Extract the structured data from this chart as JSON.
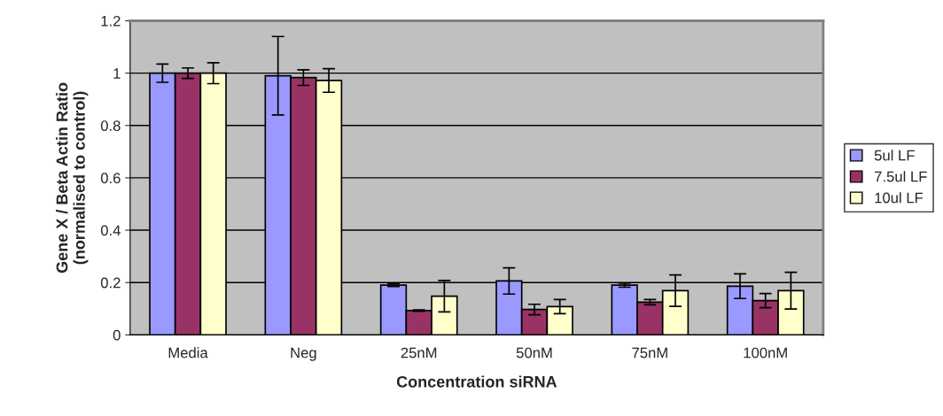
{
  "chart_data": {
    "type": "bar",
    "xlabel": "Concentration siRNA",
    "ylabel": "Gene X / Beta Actin Ratio\n(normalised to control)",
    "categories": [
      "Media",
      "Neg",
      "25nM",
      "50nM",
      "75nM",
      "100nM"
    ],
    "series": [
      {
        "name": "5ul LF",
        "color": "#9999ff",
        "values": [
          1.0,
          0.99,
          0.19,
          0.206,
          0.19,
          0.186
        ],
        "errors": [
          0.035,
          0.15,
          0.005,
          0.05,
          0.008,
          0.047
        ]
      },
      {
        "name": "7.5ul LF",
        "color": "#993366",
        "values": [
          1.0,
          0.983,
          0.093,
          0.097,
          0.125,
          0.131
        ],
        "errors": [
          0.02,
          0.03,
          0.003,
          0.02,
          0.01,
          0.027
        ]
      },
      {
        "name": "10ul LF",
        "color": "#ffffcc",
        "values": [
          1.0,
          0.972,
          0.148,
          0.108,
          0.169,
          0.169
        ],
        "errors": [
          0.04,
          0.045,
          0.06,
          0.027,
          0.06,
          0.07
        ]
      }
    ],
    "ylim": [
      0,
      1.2
    ],
    "yticks": [
      0,
      0.2,
      0.4,
      0.6,
      0.8,
      1,
      1.2
    ],
    "grid": "y",
    "legend": "right"
  }
}
